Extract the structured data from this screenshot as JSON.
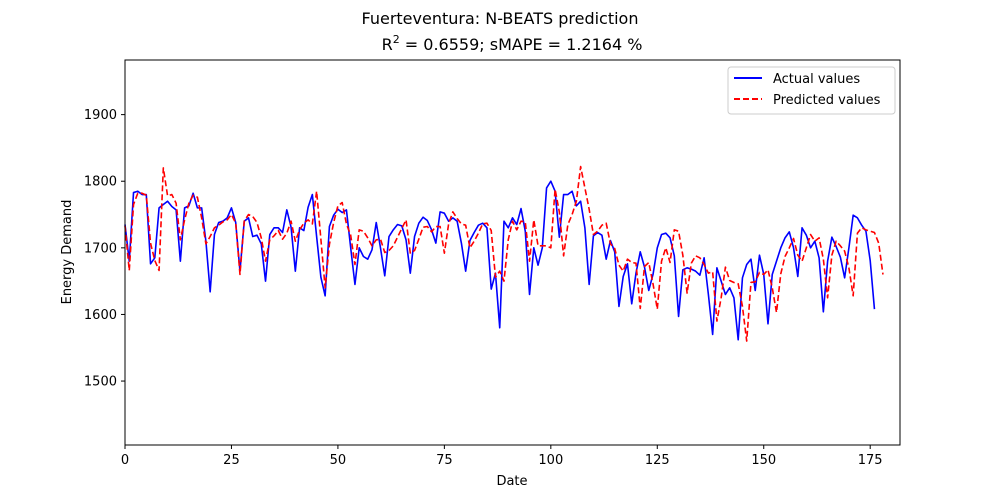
{
  "title_line1": "Fuerteventura: N-BEATS prediction",
  "title_line2_prefix": "R",
  "title_line2_sup": "2",
  "title_line2_rest": " = 0.6559; sMAPE = 1.2164 %",
  "chart_data": {
    "type": "line",
    "xlabel": "Date",
    "ylabel": "Energy Demand",
    "xlim": [
      0,
      182
    ],
    "ylim": [
      1404,
      1982
    ],
    "xticks": [
      0,
      25,
      50,
      75,
      100,
      125,
      150,
      175
    ],
    "yticks": [
      1500,
      1600,
      1700,
      1800,
      1900
    ],
    "legend_position": "top-right",
    "grid": false,
    "series": [
      {
        "name": "Actual values",
        "color": "#0000ff",
        "style": "solid",
        "x_start": 0,
        "values": [
          1735,
          1680,
          1783,
          1785,
          1780,
          1780,
          1676,
          1685,
          1760,
          1765,
          1770,
          1762,
          1757,
          1680,
          1760,
          1763,
          1782,
          1760,
          1760,
          1710,
          1634,
          1720,
          1738,
          1740,
          1745,
          1760,
          1738,
          1665,
          1740,
          1745,
          1717,
          1719,
          1706,
          1650,
          1720,
          1730,
          1730,
          1723,
          1757,
          1731,
          1665,
          1730,
          1726,
          1761,
          1780,
          1717,
          1656,
          1628,
          1732,
          1749,
          1758,
          1753,
          1757,
          1700,
          1645,
          1700,
          1687,
          1683,
          1697,
          1738,
          1700,
          1658,
          1717,
          1727,
          1735,
          1733,
          1712,
          1662,
          1717,
          1737,
          1746,
          1741,
          1727,
          1707,
          1754,
          1752,
          1740,
          1745,
          1740,
          1707,
          1665,
          1711,
          1723,
          1734,
          1737,
          1730,
          1638,
          1662,
          1580,
          1740,
          1730,
          1745,
          1735,
          1759,
          1725,
          1630,
          1700,
          1674,
          1700,
          1790,
          1800,
          1785,
          1716,
          1780,
          1780,
          1785,
          1763,
          1770,
          1730,
          1645,
          1718,
          1723,
          1719,
          1683,
          1711,
          1694,
          1612,
          1657,
          1676,
          1616,
          1662,
          1694,
          1671,
          1636,
          1660,
          1700,
          1720,
          1722,
          1715,
          1688,
          1597,
          1667,
          1670,
          1668,
          1665,
          1659,
          1685,
          1630,
          1570,
          1670,
          1650,
          1630,
          1640,
          1625,
          1562,
          1655,
          1675,
          1683,
          1636,
          1689,
          1660,
          1586,
          1660,
          1680,
          1700,
          1715,
          1724,
          1700,
          1657,
          1730,
          1719,
          1700,
          1710,
          1685,
          1604,
          1680,
          1716,
          1702,
          1686,
          1655,
          1700,
          1749,
          1745,
          1734,
          1725,
          1681,
          1608
        ]
      },
      {
        "name": "Predicted values",
        "color": "#ff0000",
        "style": "dashed",
        "x_start": 0,
        "values": [
          1733,
          1666,
          1765,
          1782,
          1782,
          1779,
          1707,
          1681,
          1666,
          1820,
          1778,
          1780,
          1767,
          1712,
          1742,
          1767,
          1779,
          1776,
          1745,
          1706,
          1717,
          1730,
          1734,
          1739,
          1742,
          1750,
          1737,
          1660,
          1740,
          1750,
          1747,
          1738,
          1715,
          1680,
          1712,
          1718,
          1726,
          1713,
          1722,
          1740,
          1710,
          1727,
          1737,
          1742,
          1736,
          1785,
          1713,
          1640,
          1705,
          1738,
          1763,
          1768,
          1736,
          1719,
          1675,
          1727,
          1725,
          1715,
          1703,
          1712,
          1713,
          1693,
          1696,
          1703,
          1716,
          1729,
          1742,
          1692,
          1696,
          1713,
          1731,
          1732,
          1724,
          1732,
          1732,
          1692,
          1736,
          1754,
          1744,
          1736,
          1734,
          1700,
          1710,
          1722,
          1736,
          1737,
          1726,
          1656,
          1665,
          1650,
          1712,
          1740,
          1727,
          1740,
          1739,
          1680,
          1742,
          1703,
          1703,
          1703,
          1700,
          1788,
          1754,
          1688,
          1735,
          1750,
          1770,
          1822,
          1790,
          1758,
          1720,
          1725,
          1734,
          1737,
          1706,
          1699,
          1674,
          1665,
          1683,
          1678,
          1677,
          1609,
          1672,
          1678,
          1646,
          1608,
          1680,
          1700,
          1678,
          1727,
          1725,
          1689,
          1632,
          1677,
          1688,
          1685,
          1675,
          1662,
          1664,
          1590,
          1625,
          1671,
          1651,
          1648,
          1646,
          1612,
          1560,
          1648,
          1649,
          1663,
          1660,
          1667,
          1640,
          1603,
          1661,
          1687,
          1700,
          1714,
          1689,
          1680,
          1700,
          1720,
          1710,
          1715,
          1683,
          1625,
          1689,
          1710,
          1703,
          1695,
          1670,
          1628,
          1722,
          1730,
          1727,
          1725,
          1723,
          1707,
          1660
        ]
      }
    ]
  }
}
